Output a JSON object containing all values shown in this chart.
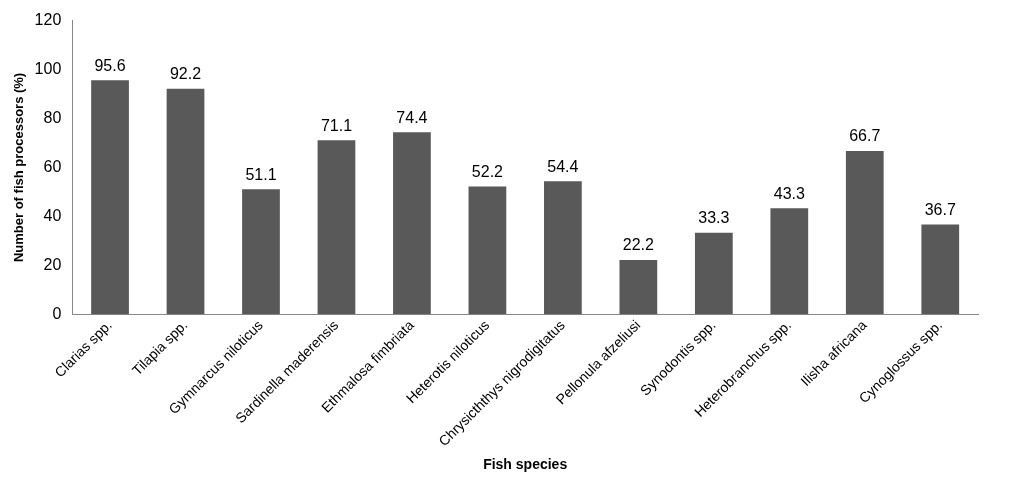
{
  "chart_data": {
    "type": "bar",
    "xlabel": "Fish species",
    "ylabel": "Number of fish processors (%)",
    "categories": [
      "Clarias spp.",
      "Tilapia spp.",
      "Gymnarcus niloticus",
      "Sardinella maderensis",
      "Ethmalosa fimbriata",
      "Heterotis niloticus",
      "Chrysicththys nigrodigitatus",
      "Pellonula afzeliusi",
      "Synodontis spp.",
      "Heterobranchus spp.",
      "Ilisha africana",
      "Cynoglossus spp."
    ],
    "values": [
      95.6,
      92.2,
      51.1,
      71.1,
      74.4,
      52.2,
      54.4,
      22.2,
      33.3,
      43.3,
      66.7,
      36.7
    ],
    "color": "#595959",
    "ylim": [
      0,
      120
    ],
    "yticks": [
      0,
      20,
      40,
      60,
      80,
      100,
      120
    ],
    "grid": false,
    "legend": false,
    "data_labels": true
  }
}
